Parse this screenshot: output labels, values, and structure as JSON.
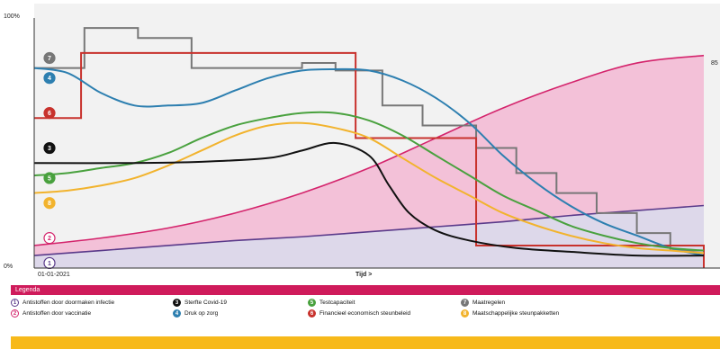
{
  "chart_data": {
    "type": "line",
    "y_axis": {
      "top_label": "100%",
      "bottom_label": "0%",
      "ylim": [
        0,
        100
      ]
    },
    "x_axis": {
      "start_label": "01-01-2021",
      "label": "Tijd >",
      "xlim": [
        0,
        100
      ]
    },
    "end_annotation": "85",
    "series": [
      {
        "key": "1",
        "color": "#5a3a8a",
        "fill": "#ddd8ea",
        "style": "area",
        "points": [
          [
            0,
            5
          ],
          [
            10,
            7
          ],
          [
            20,
            9
          ],
          [
            30,
            11
          ],
          [
            40,
            12.5
          ],
          [
            50,
            14.5
          ],
          [
            60,
            16.5
          ],
          [
            70,
            18.5
          ],
          [
            80,
            21
          ],
          [
            90,
            23
          ],
          [
            100,
            25
          ]
        ]
      },
      {
        "key": "2",
        "color": "#d4246c",
        "fill": "#f3c1d8",
        "style": "area",
        "points": [
          [
            0,
            9
          ],
          [
            10,
            12
          ],
          [
            20,
            16
          ],
          [
            30,
            22
          ],
          [
            40,
            30
          ],
          [
            50,
            40
          ],
          [
            60,
            52
          ],
          [
            70,
            64
          ],
          [
            80,
            74
          ],
          [
            90,
            82
          ],
          [
            100,
            85
          ]
        ]
      },
      {
        "key": "3",
        "color": "#111111",
        "style": "line",
        "points": [
          [
            0,
            42
          ],
          [
            15,
            42
          ],
          [
            25,
            42.5
          ],
          [
            35,
            44
          ],
          [
            40,
            47
          ],
          [
            45,
            50
          ],
          [
            50,
            45
          ],
          [
            53,
            33
          ],
          [
            56,
            22
          ],
          [
            60,
            15
          ],
          [
            65,
            11
          ],
          [
            72,
            8
          ],
          [
            80,
            6.5
          ],
          [
            90,
            5
          ],
          [
            100,
            5
          ]
        ]
      },
      {
        "key": "4",
        "color": "#2d7fb0",
        "style": "line",
        "points": [
          [
            0,
            80
          ],
          [
            5,
            78
          ],
          [
            10,
            70
          ],
          [
            15,
            65
          ],
          [
            20,
            65
          ],
          [
            25,
            66
          ],
          [
            30,
            71
          ],
          [
            35,
            76
          ],
          [
            40,
            79
          ],
          [
            45,
            79.5
          ],
          [
            50,
            79
          ],
          [
            55,
            75
          ],
          [
            60,
            68
          ],
          [
            65,
            58
          ],
          [
            70,
            45
          ],
          [
            75,
            34
          ],
          [
            80,
            25
          ],
          [
            85,
            18
          ],
          [
            90,
            13
          ],
          [
            95,
            8
          ],
          [
            100,
            5
          ]
        ]
      },
      {
        "key": "5",
        "color": "#49a13e",
        "style": "line",
        "points": [
          [
            0,
            37
          ],
          [
            5,
            38
          ],
          [
            10,
            40
          ],
          [
            15,
            42
          ],
          [
            20,
            46
          ],
          [
            25,
            52
          ],
          [
            30,
            57
          ],
          [
            35,
            60
          ],
          [
            40,
            62
          ],
          [
            45,
            62
          ],
          [
            50,
            59
          ],
          [
            55,
            53
          ],
          [
            60,
            45
          ],
          [
            65,
            37
          ],
          [
            70,
            29
          ],
          [
            75,
            23
          ],
          [
            80,
            17
          ],
          [
            85,
            13
          ],
          [
            90,
            10
          ],
          [
            95,
            8
          ],
          [
            100,
            7
          ]
        ]
      },
      {
        "key": "6",
        "color": "#c8322d",
        "style": "step",
        "points": [
          [
            0,
            60
          ],
          [
            7,
            60
          ],
          [
            7,
            86
          ],
          [
            33,
            86
          ],
          [
            33,
            86
          ],
          [
            48,
            86
          ],
          [
            48,
            52
          ],
          [
            66,
            52
          ],
          [
            66,
            9
          ],
          [
            100,
            9
          ],
          [
            100,
            0
          ]
        ]
      },
      {
        "key": "7",
        "color": "#777777",
        "style": "step",
        "points": [
          [
            0,
            80
          ],
          [
            7.5,
            80
          ],
          [
            7.5,
            96
          ],
          [
            15.5,
            96
          ],
          [
            15.5,
            92
          ],
          [
            23.5,
            92
          ],
          [
            23.5,
            80
          ],
          [
            40,
            80
          ],
          [
            40,
            82
          ],
          [
            45,
            82
          ],
          [
            45,
            79
          ],
          [
            52,
            79
          ],
          [
            52,
            65
          ],
          [
            58,
            65
          ],
          [
            58,
            57
          ],
          [
            66,
            57
          ],
          [
            66,
            48
          ],
          [
            72,
            48
          ],
          [
            72,
            38
          ],
          [
            78,
            38
          ],
          [
            78,
            30
          ],
          [
            84,
            30
          ],
          [
            84,
            22
          ],
          [
            90,
            22
          ],
          [
            90,
            14
          ],
          [
            95,
            14
          ],
          [
            95,
            7
          ],
          [
            100,
            7
          ]
        ]
      },
      {
        "key": "8",
        "color": "#f2b32d",
        "style": "line",
        "points": [
          [
            0,
            30
          ],
          [
            5,
            31
          ],
          [
            10,
            33
          ],
          [
            15,
            36
          ],
          [
            20,
            41
          ],
          [
            25,
            47
          ],
          [
            30,
            53
          ],
          [
            35,
            57
          ],
          [
            40,
            58
          ],
          [
            45,
            56
          ],
          [
            50,
            52
          ],
          [
            55,
            44
          ],
          [
            60,
            36
          ],
          [
            65,
            29
          ],
          [
            70,
            22
          ],
          [
            75,
            17
          ],
          [
            80,
            13
          ],
          [
            85,
            10
          ],
          [
            90,
            8
          ],
          [
            95,
            7
          ],
          [
            100,
            6
          ]
        ]
      }
    ],
    "markers": [
      {
        "key": "7",
        "color": "#777777",
        "filled": true,
        "level": 84
      },
      {
        "key": "4",
        "color": "#2d7fb0",
        "filled": true,
        "level": 76
      },
      {
        "key": "6",
        "color": "#c8322d",
        "filled": true,
        "level": 62
      },
      {
        "key": "3",
        "color": "#111111",
        "filled": true,
        "level": 48
      },
      {
        "key": "5",
        "color": "#49a13e",
        "filled": true,
        "level": 36
      },
      {
        "key": "8",
        "color": "#f2b32d",
        "filled": true,
        "level": 26
      },
      {
        "key": "2",
        "color": "#d4246c",
        "filled": false,
        "level": 12
      },
      {
        "key": "1",
        "color": "#5a3a8a",
        "filled": false,
        "level": 2
      }
    ]
  },
  "legend": {
    "title": "Legenda",
    "items": [
      {
        "key": "1",
        "label": "Antistoffen door doormaken infectie",
        "color": "#5a3a8a",
        "filled": false
      },
      {
        "key": "2",
        "label": "Antistoffen door vaccinatie",
        "color": "#d4246c",
        "filled": false
      },
      {
        "key": "3",
        "label": "Sterfte Covid-19",
        "color": "#111111",
        "filled": true
      },
      {
        "key": "4",
        "label": "Druk op zorg",
        "color": "#2d7fb0",
        "filled": true
      },
      {
        "key": "5",
        "label": "Testcapaciteit",
        "color": "#49a13e",
        "filled": true
      },
      {
        "key": "6",
        "label": "Financieel economisch steunbeleid",
        "color": "#c8322d",
        "filled": true
      },
      {
        "key": "7",
        "label": "Maatregelen",
        "color": "#777777",
        "filled": true
      },
      {
        "key": "8",
        "label": "Maatschappelijke steunpakketten",
        "color": "#f2b32d",
        "filled": true
      }
    ]
  }
}
